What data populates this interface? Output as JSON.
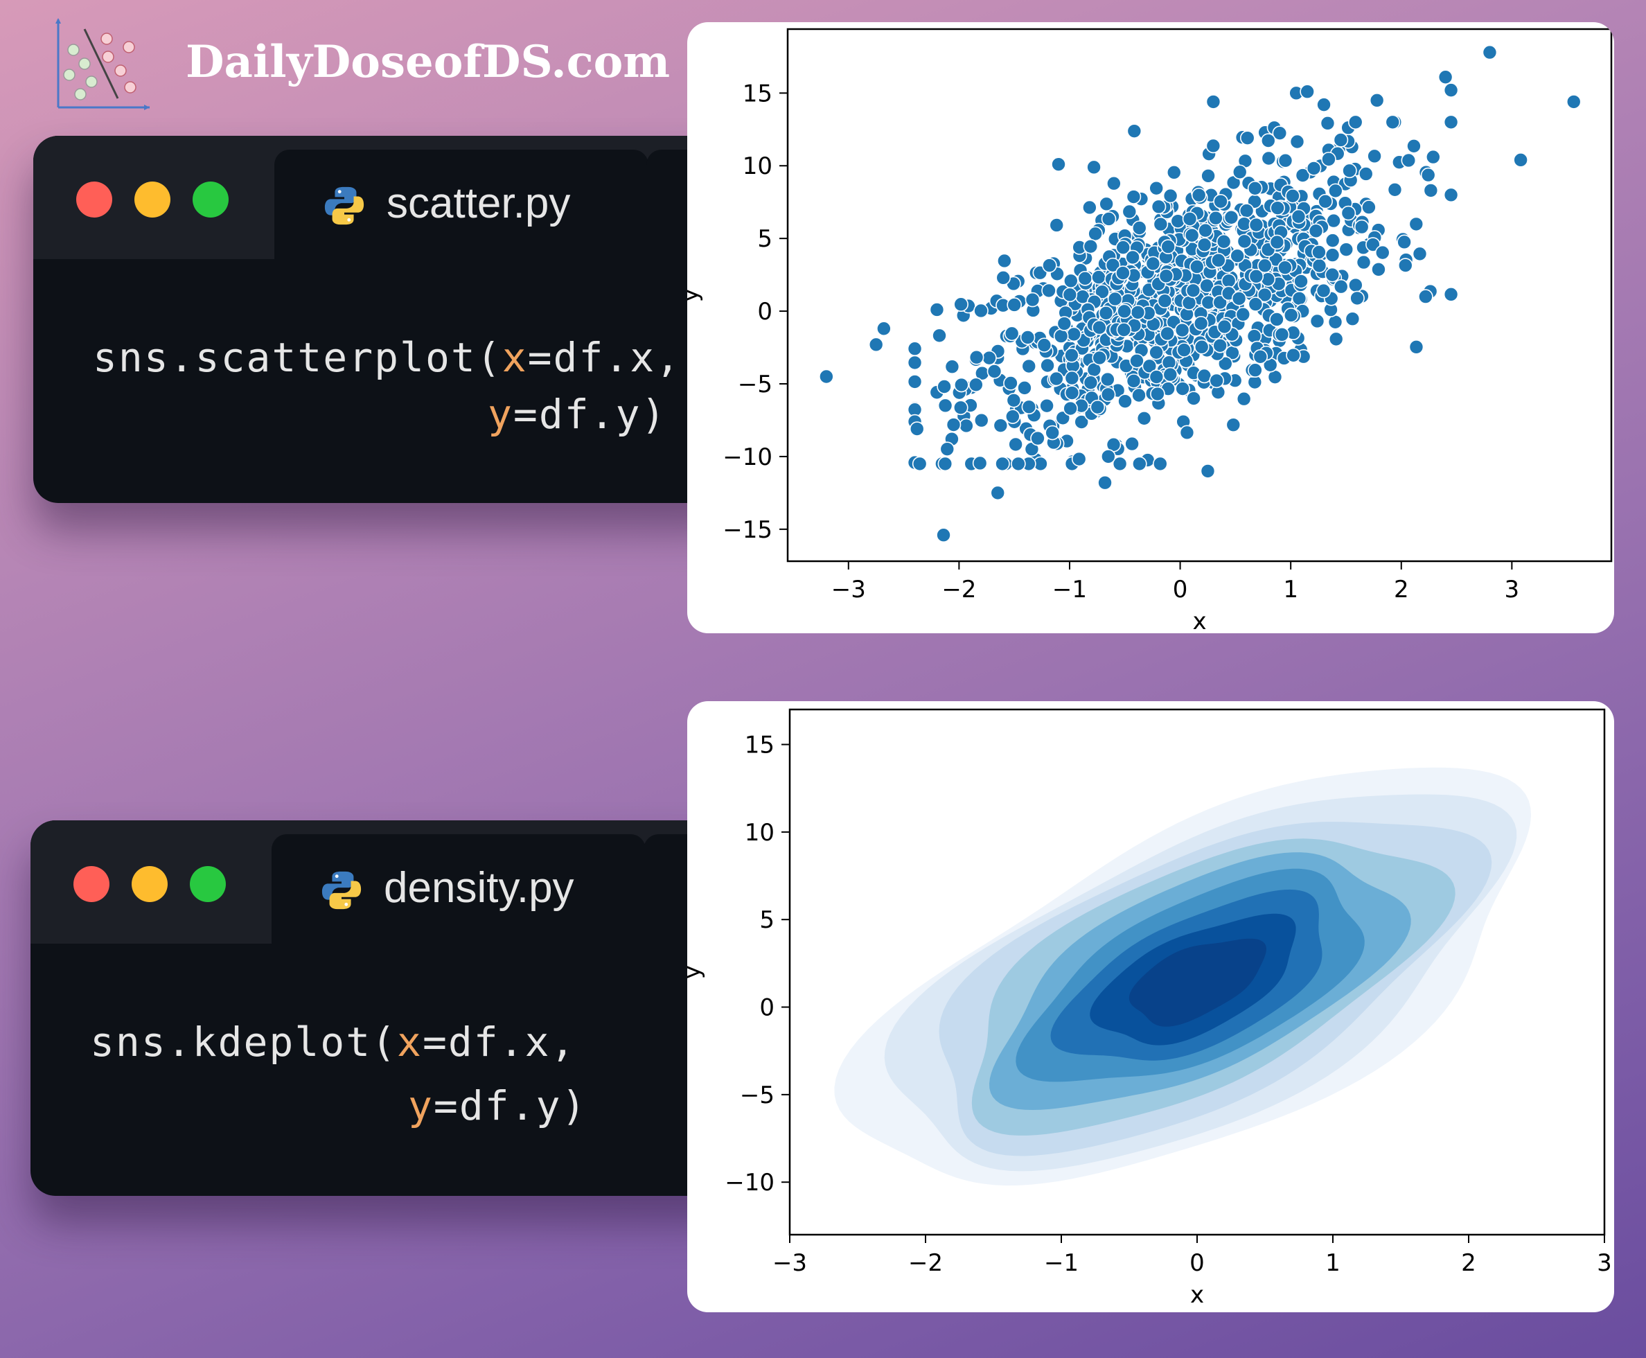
{
  "brand": {
    "name": "DailyDoseofDS.com",
    "logo_icon": "scatter-classifier-logo-icon"
  },
  "editors": [
    {
      "tab_label": "scatter.py",
      "tab_icon": "python-icon",
      "code": {
        "line1_prefix": "sns.scatterplot(",
        "line1_kw": "x",
        "line1_suffix": "=df.x,",
        "line2_kw": "y",
        "line2_suffix": "=df.y)"
      }
    },
    {
      "tab_label": "density.py",
      "tab_icon": "python-icon",
      "code": {
        "line1_prefix": "sns.kdeplot(",
        "line1_kw": "x",
        "line1_suffix": "=df.x,",
        "line2_kw": "y",
        "line2_suffix": "=df.y)"
      }
    }
  ],
  "colors": {
    "point": "#1f77b4",
    "keyword": "#f0a35e",
    "window_bg": "#0d1117",
    "titlebar": "#1c1f26"
  },
  "chart_data": [
    {
      "type": "scatter",
      "title": "",
      "xlabel": "x",
      "ylabel": "y",
      "xlim": [
        -3.55,
        3.9
      ],
      "ylim": [
        -17.2,
        19.4
      ],
      "xticks": [
        -3,
        -2,
        -1,
        0,
        1,
        2,
        3
      ],
      "yticks": [
        -15,
        -10,
        -5,
        0,
        5,
        10,
        15
      ],
      "xtick_labels": [
        "−3",
        "−2",
        "−1",
        "0",
        "1",
        "2",
        "3"
      ],
      "ytick_labels": [
        "−15",
        "−10",
        "−5",
        "0",
        "5",
        "10",
        "15"
      ],
      "grid": false,
      "series": [
        {
          "points_note": "approx. 1000 points; bulk sampled around correlated normal (x sd≈1, y sd≈5, r≈0.55)",
          "x": [
            -3.2,
            -2.68,
            -2.75,
            -2.4,
            -2.38,
            -2.2,
            -2.14,
            -1.65,
            -1.6,
            2.8,
            3.56,
            3.08,
            2.4,
            2.45,
            2.22,
            0.25,
            0.3,
            -0.65,
            -0.68,
            1.05,
            1.15,
            1.3,
            1.78,
            -1.1,
            -0.78
          ],
          "y": [
            -4.5,
            -1.2,
            -2.3,
            -7.6,
            -8.1,
            0.1,
            -15.4,
            -12.5,
            2.3,
            17.8,
            14.4,
            10.4,
            16.1,
            15.2,
            1.0,
            -11.0,
            14.4,
            -10.0,
            -11.8,
            15.0,
            15.1,
            14.2,
            14.5,
            10.1,
            9.9
          ]
        }
      ]
    },
    {
      "type": "heatmap",
      "subtype": "kde_contour",
      "title": "",
      "xlabel": "x",
      "ylabel": "y",
      "xlim": [
        -3,
        3
      ],
      "ylim": [
        -13,
        17
      ],
      "xticks": [
        -3,
        -2,
        -1,
        0,
        1,
        2,
        3
      ],
      "yticks": [
        -10,
        -5,
        0,
        5,
        10,
        15
      ],
      "xtick_labels": [
        "−3",
        "−2",
        "−1",
        "0",
        "1",
        "2",
        "3"
      ],
      "ytick_labels": [
        "−10",
        "−5",
        "0",
        "5",
        "10",
        "15"
      ],
      "grid": false,
      "levels": 9,
      "peak": {
        "x": 0.0,
        "y": 1.5
      },
      "colormap": [
        "#eef4fb",
        "#dbe8f5",
        "#c6dbef",
        "#9ecae1",
        "#6baed6",
        "#4292c6",
        "#2171b5",
        "#08519c",
        "#08428a"
      ]
    }
  ]
}
